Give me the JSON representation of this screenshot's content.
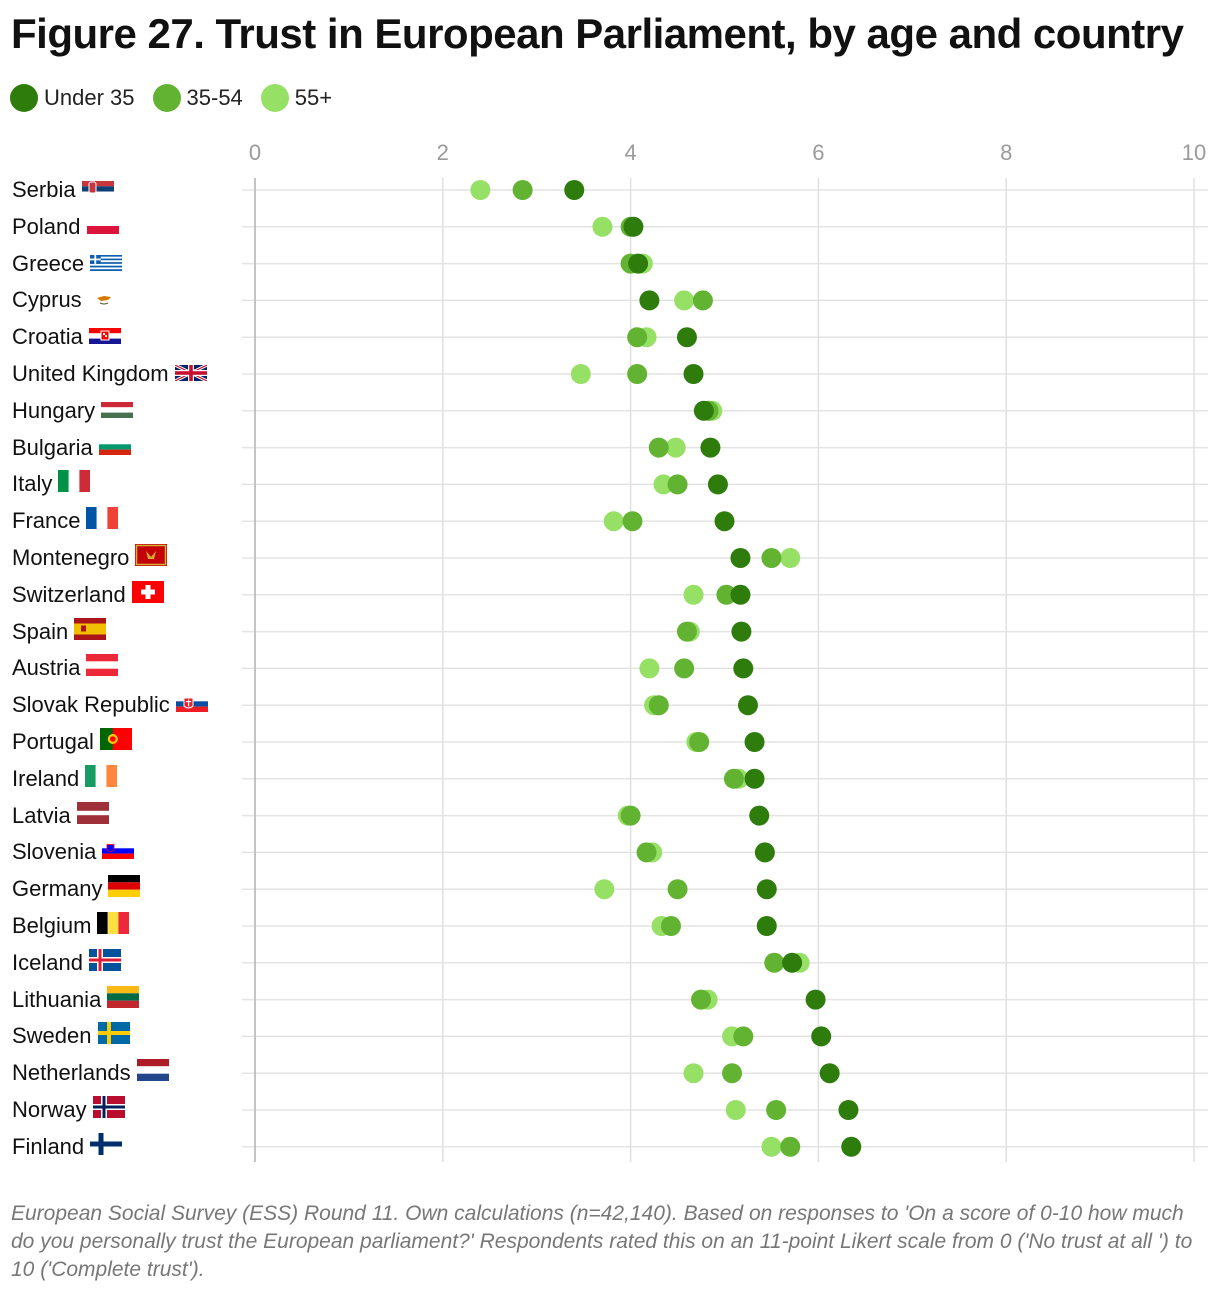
{
  "title": "Figure 27. Trust in European Parliament, by age and country",
  "footnote": "European Social Survey (ESS) Round 11. Own calculations (n=42,140). Based on responses to 'On a score of 0-10 how much do you personally trust the European parliament?' Respondents rated this on an 11-point Likert scale from 0 ('No trust at all ') to 10 ('Complete trust').",
  "chart_data": {
    "type": "scatter",
    "xlim": [
      0,
      10
    ],
    "xticks": [
      "0",
      "2",
      "4",
      "6",
      "8",
      "10"
    ],
    "grid": true,
    "legend_position": "top-left",
    "series": [
      {
        "name": "Under 35",
        "color": "#2e7d0c"
      },
      {
        "name": "35-54",
        "color": "#62b332"
      },
      {
        "name": "55+",
        "color": "#96e066"
      }
    ],
    "countries": [
      {
        "name": "Serbia",
        "flag": "serbia-flag",
        "values": [
          3.4,
          2.85,
          2.4
        ]
      },
      {
        "name": "Poland",
        "flag": "poland-flag",
        "values": [
          4.03,
          4.0,
          3.7
        ]
      },
      {
        "name": "Greece",
        "flag": "greece-flag",
        "values": [
          4.08,
          4.0,
          4.13
        ]
      },
      {
        "name": "Cyprus",
        "flag": "cyprus-flag",
        "values": [
          4.2,
          4.77,
          4.57
        ]
      },
      {
        "name": "Croatia",
        "flag": "croatia-flag",
        "values": [
          4.6,
          4.07,
          4.17
        ]
      },
      {
        "name": "United Kingdom",
        "flag": "uk-flag",
        "values": [
          4.67,
          4.07,
          3.47
        ]
      },
      {
        "name": "Hungary",
        "flag": "hungary-flag",
        "values": [
          4.78,
          4.83,
          4.87
        ]
      },
      {
        "name": "Bulgaria",
        "flag": "bulgaria-flag",
        "values": [
          4.85,
          4.3,
          4.48
        ]
      },
      {
        "name": "Italy",
        "flag": "italy-flag",
        "values": [
          4.93,
          4.5,
          4.35
        ]
      },
      {
        "name": "France",
        "flag": "france-flag",
        "values": [
          5.0,
          4.02,
          3.82
        ]
      },
      {
        "name": "Montenegro",
        "flag": "montenegro-flag",
        "values": [
          5.17,
          5.5,
          5.7
        ]
      },
      {
        "name": "Switzerland",
        "flag": "switzerland-flag",
        "values": [
          5.17,
          5.02,
          4.67
        ]
      },
      {
        "name": "Spain",
        "flag": "spain-flag",
        "values": [
          5.18,
          4.6,
          4.63
        ]
      },
      {
        "name": "Austria",
        "flag": "austria-flag",
        "values": [
          5.2,
          4.57,
          4.2
        ]
      },
      {
        "name": "Slovak Republic",
        "flag": "slovakia-flag",
        "values": [
          5.25,
          4.3,
          4.25
        ]
      },
      {
        "name": "Portugal",
        "flag": "portugal-flag",
        "values": [
          5.32,
          4.73,
          4.7
        ]
      },
      {
        "name": "Ireland",
        "flag": "ireland-flag",
        "values": [
          5.32,
          5.1,
          5.15
        ]
      },
      {
        "name": "Latvia",
        "flag": "latvia-flag",
        "values": [
          5.37,
          4.0,
          3.97
        ]
      },
      {
        "name": "Slovenia",
        "flag": "slovenia-flag",
        "values": [
          5.43,
          4.17,
          4.23
        ]
      },
      {
        "name": "Germany",
        "flag": "germany-flag",
        "values": [
          5.45,
          4.5,
          3.72
        ]
      },
      {
        "name": "Belgium",
        "flag": "belgium-flag",
        "values": [
          5.45,
          4.43,
          4.33
        ]
      },
      {
        "name": "Iceland",
        "flag": "iceland-flag",
        "values": [
          5.72,
          5.53,
          5.8
        ]
      },
      {
        "name": "Lithuania",
        "flag": "lithuania-flag",
        "values": [
          5.97,
          4.75,
          4.82
        ]
      },
      {
        "name": "Sweden",
        "flag": "sweden-flag",
        "values": [
          6.03,
          5.2,
          5.08
        ]
      },
      {
        "name": "Netherlands",
        "flag": "netherlands-flag",
        "values": [
          6.12,
          5.08,
          4.67
        ]
      },
      {
        "name": "Norway",
        "flag": "norway-flag",
        "values": [
          6.32,
          5.55,
          5.12
        ]
      },
      {
        "name": "Finland",
        "flag": "finland-flag",
        "values": [
          6.35,
          5.7,
          5.5
        ]
      }
    ]
  }
}
